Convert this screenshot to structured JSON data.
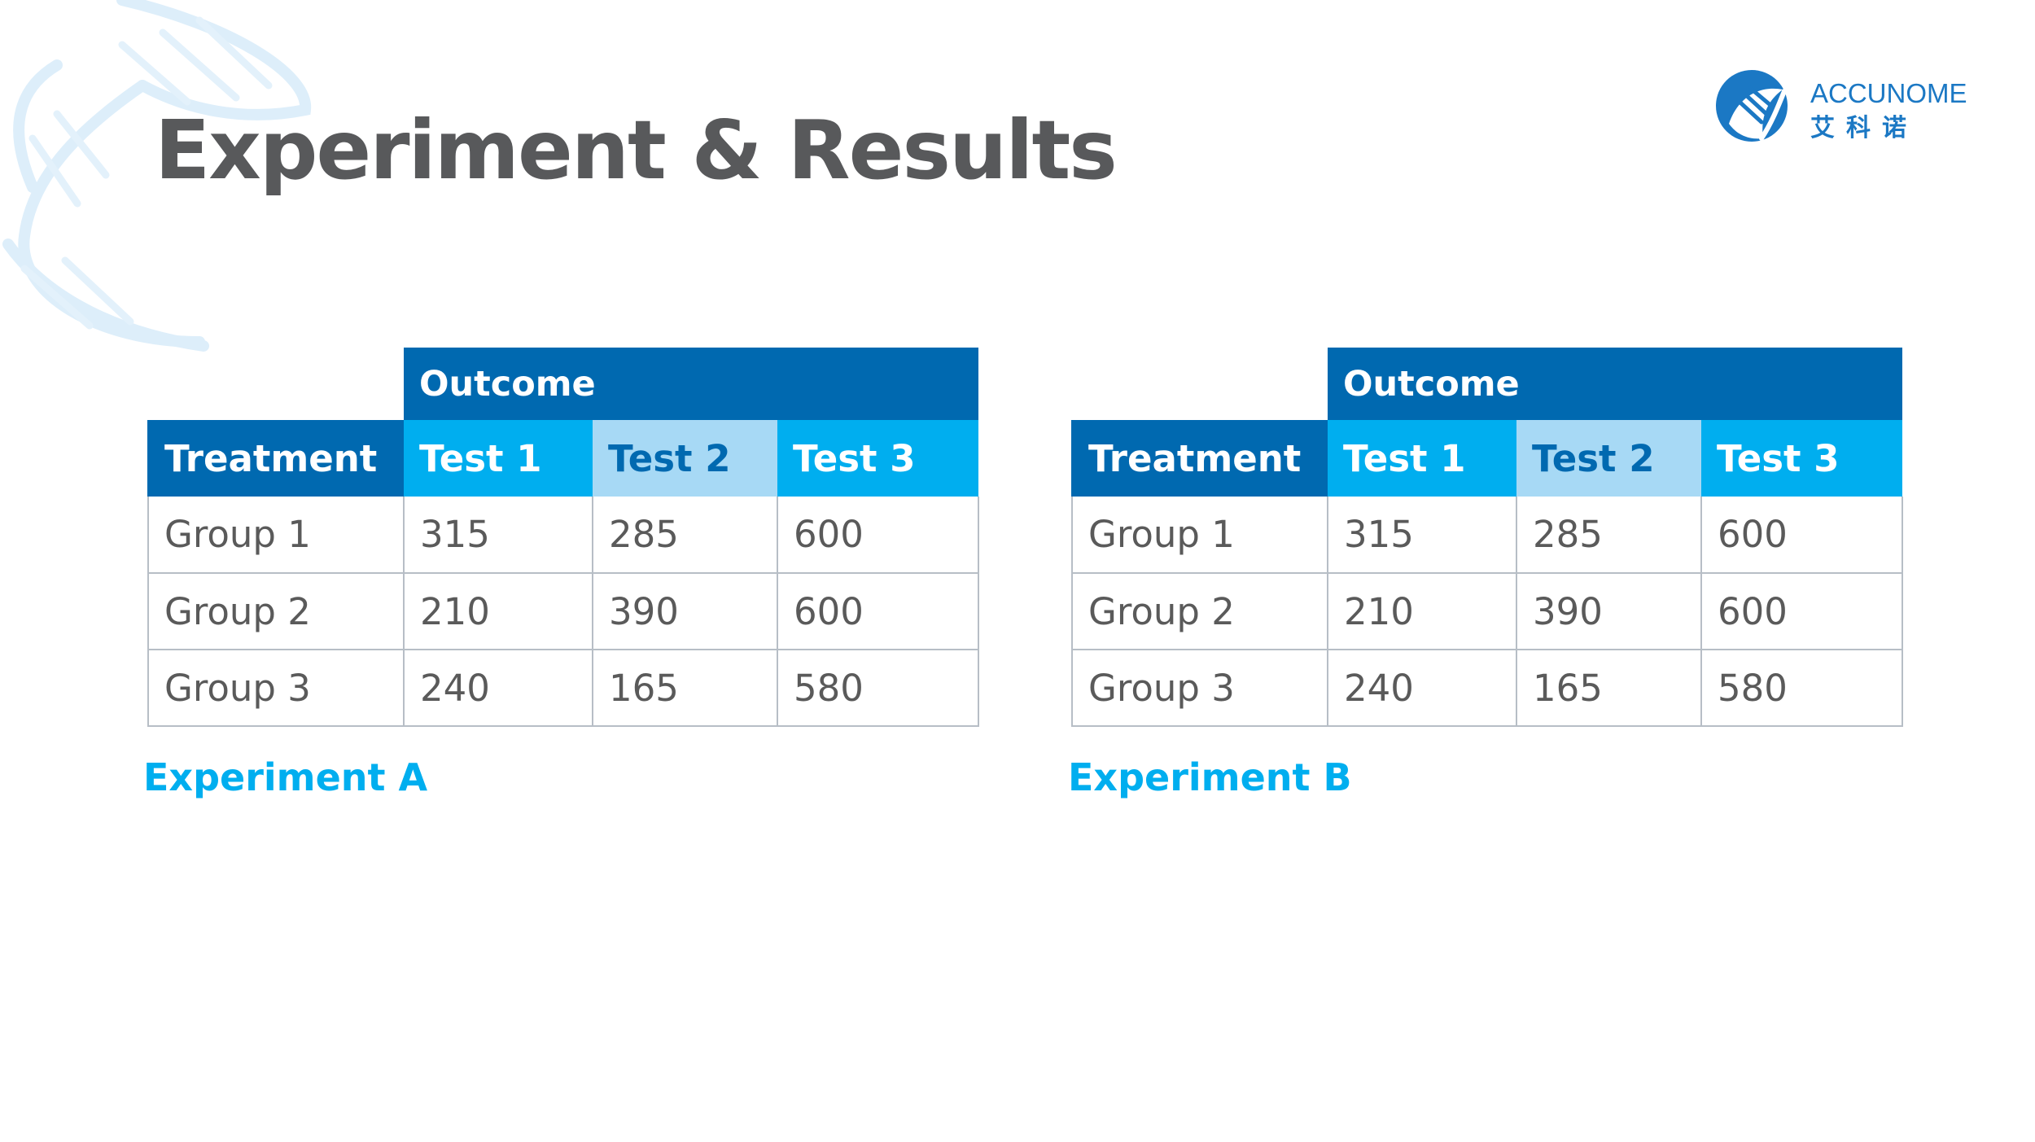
{
  "slide": {
    "title": "Experiment & Results"
  },
  "logo": {
    "wordmark": "ACCUNOME",
    "chinese": "艾科诺",
    "brand_color": "#1b78c4"
  },
  "colors": {
    "title": "#58595b",
    "dark_blue": "#0069b0",
    "bright_blue": "#00aeef",
    "light_blue": "#a7d9f5",
    "body_text": "#5a5a5a",
    "grid": "#b7bec6"
  },
  "tables": {
    "a": {
      "caption": "Experiment A",
      "group_header": "Outcome",
      "columns": [
        "Treatment",
        "Test 1",
        "Test 2",
        "Test 3"
      ],
      "rows": [
        [
          "Group 1",
          "315",
          "285",
          "600"
        ],
        [
          "Group 2",
          "210",
          "390",
          "600"
        ],
        [
          "Group 3",
          "240",
          "165",
          "580"
        ]
      ]
    },
    "b": {
      "caption": "Experiment B",
      "group_header": "Outcome",
      "columns": [
        "Treatment",
        "Test 1",
        "Test 2",
        "Test 3"
      ],
      "rows": [
        [
          "Group 1",
          "315",
          "285",
          "600"
        ],
        [
          "Group 2",
          "210",
          "390",
          "600"
        ],
        [
          "Group 3",
          "240",
          "165",
          "580"
        ]
      ]
    }
  }
}
